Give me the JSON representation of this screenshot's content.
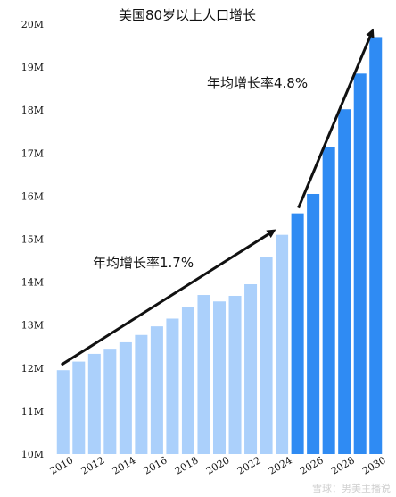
{
  "chart_data": {
    "type": "bar",
    "title": "美国80岁以上人口增长",
    "xlabel": "",
    "ylabel": "",
    "ylim": [
      10,
      20
    ],
    "y_ticks": [
      "10M",
      "11M",
      "12M",
      "13M",
      "14M",
      "15M",
      "16M",
      "17M",
      "18M",
      "19M",
      "20M"
    ],
    "x_tick_labels": [
      "2010",
      "2012",
      "2014",
      "2016",
      "2018",
      "2020",
      "2022",
      "2024",
      "2026",
      "2028",
      "2030"
    ],
    "categories": [
      "2010",
      "2011",
      "2012",
      "2013",
      "2014",
      "2015",
      "2016",
      "2017",
      "2018",
      "2019",
      "2020",
      "2021",
      "2022",
      "2023",
      "2024",
      "2025",
      "2026",
      "2027",
      "2028",
      "2029",
      "2030"
    ],
    "values": [
      11.95,
      12.15,
      12.33,
      12.45,
      12.6,
      12.77,
      12.97,
      13.15,
      13.42,
      13.7,
      13.55,
      13.68,
      13.95,
      14.58,
      15.1,
      15.6,
      16.05,
      17.15,
      18.02,
      18.85,
      19.7
    ],
    "historical_color": "#abd0fb",
    "projected_color": "#2f8bf3",
    "projection_start": "2025",
    "grid": false,
    "legend": "none",
    "annotations": [
      {
        "text": "年均增长率1.7%",
        "from": "2010",
        "to": "2024"
      },
      {
        "text": "年均增长率4.8%",
        "from": "2025",
        "to": "2030"
      }
    ]
  },
  "watermark": "雪球：男美主播说"
}
